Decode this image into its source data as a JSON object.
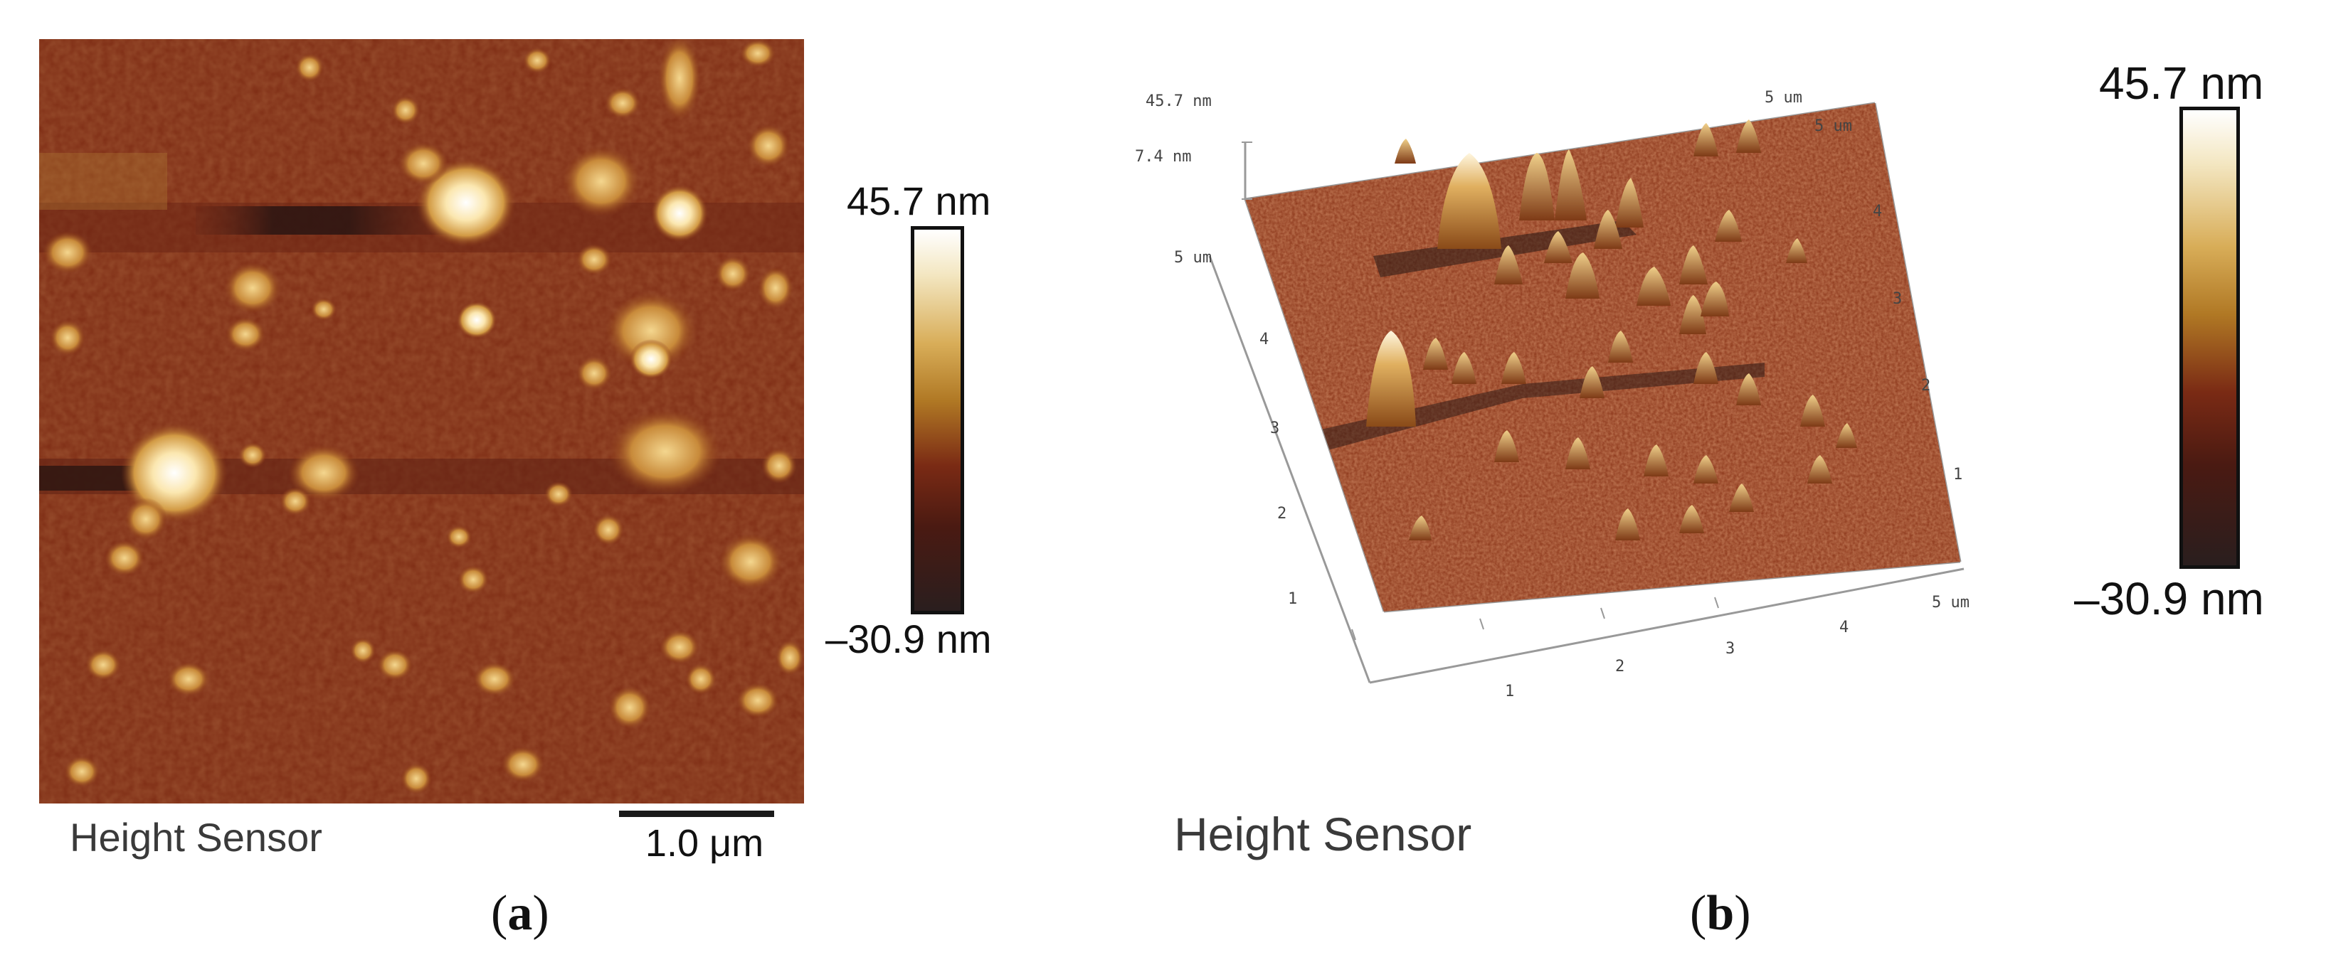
{
  "panel_a": {
    "label_open": "(",
    "label_letter": "a",
    "label_close": ")",
    "sensor_label": "Height Sensor",
    "scale_bar_label": "1.0 μm",
    "colorbar_max": "45.7 nm",
    "colorbar_min": "–30.9 nm"
  },
  "panel_b": {
    "label_open": "(",
    "label_letter": "b",
    "label_close": ")",
    "sensor_label": "Height Sensor",
    "colorbar_max": "45.7 nm",
    "colorbar_min": "–30.9 nm",
    "z_max_label": "45.7 nm",
    "z_mid_label": "7.4 nm",
    "y_axis_top": "5 um",
    "y_ticks": [
      "4",
      "3",
      "2",
      "1"
    ],
    "x_ticks": [
      "1",
      "2",
      "3",
      "4"
    ],
    "x_axis_end": "5 um",
    "back_ticks": [
      "4",
      "3",
      "2",
      "1"
    ],
    "back_top_a": "5 um",
    "back_top_b": "5 um"
  },
  "colors": {
    "substrate": "#7a2a14",
    "dark_band": "#3a1a14",
    "particle_bright": "#fff4d6",
    "particle_mid": "#d8a04a"
  }
}
